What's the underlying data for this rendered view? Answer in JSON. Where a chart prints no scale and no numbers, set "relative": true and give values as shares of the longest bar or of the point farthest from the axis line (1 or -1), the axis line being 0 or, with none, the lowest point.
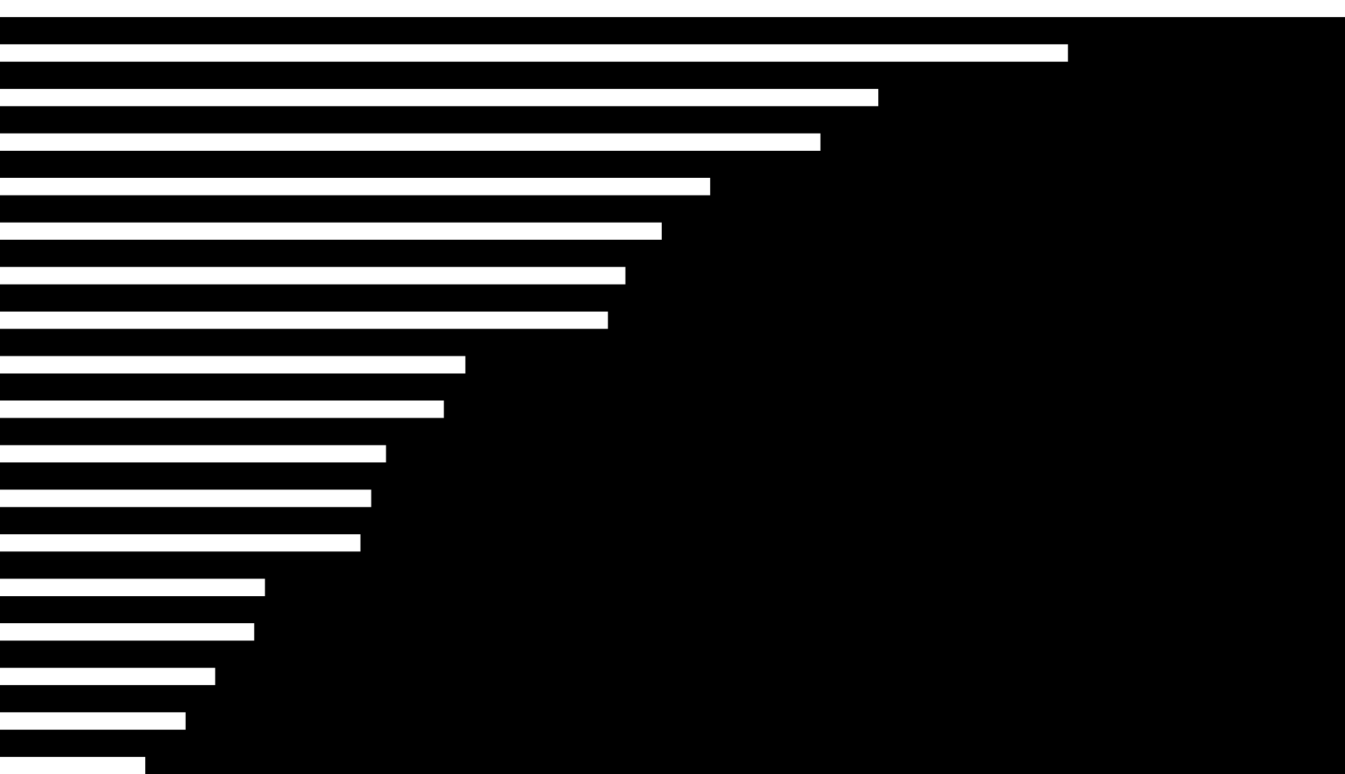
{
  "chart_data": {
    "type": "bar",
    "orientation": "horizontal",
    "relative": true,
    "categories": [
      null,
      null,
      null,
      null,
      null,
      null,
      null,
      null,
      null,
      null,
      null,
      null,
      null,
      null,
      null,
      null,
      null,
      null
    ],
    "values": [
      1,
      0.794,
      0.653,
      0.61,
      0.528,
      0.492,
      0.465,
      0.452,
      0.346,
      0.33,
      0.287,
      0.276,
      0.268,
      0.197,
      0.189,
      0.16,
      0.138,
      0.108
    ],
    "color": "#ffffff"
  }
}
